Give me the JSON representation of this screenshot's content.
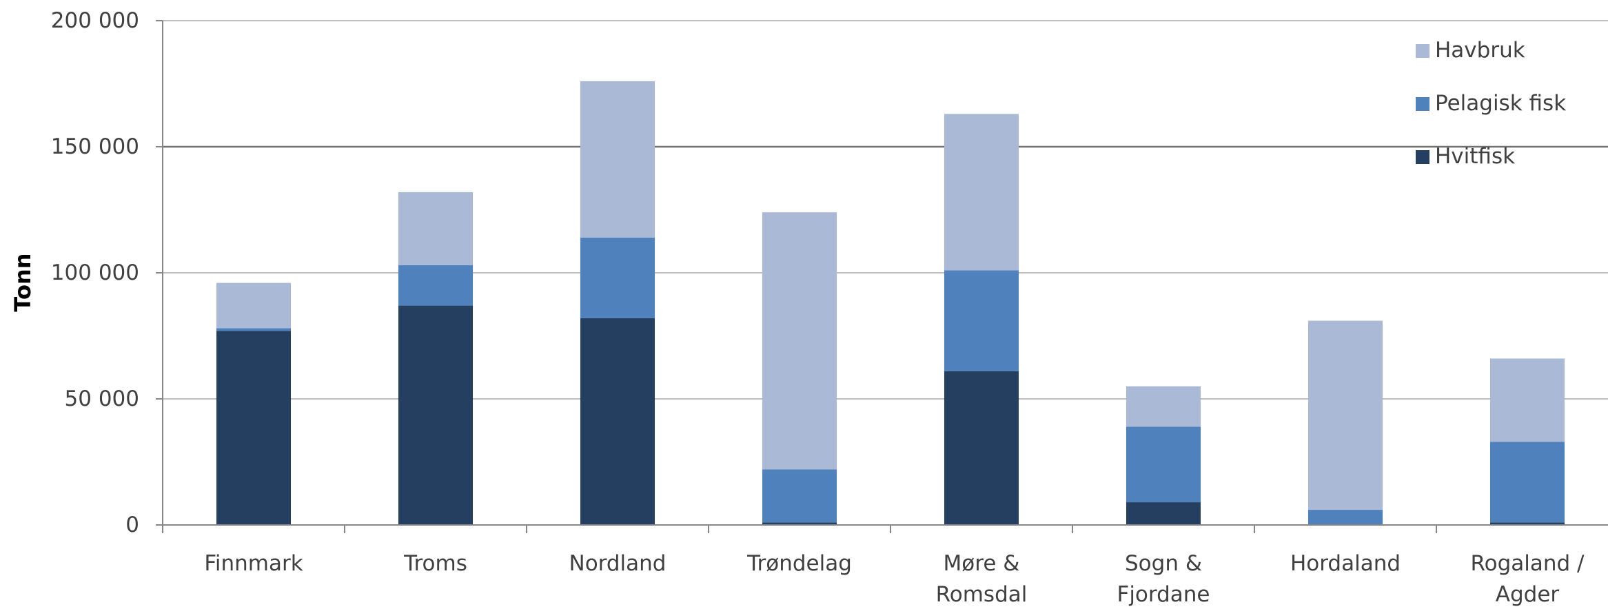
{
  "chart_data": {
    "type": "bar",
    "stacked": true,
    "categories": [
      "Finnmark",
      "Troms",
      "Nordland",
      "Trøndelag",
      "Møre & Romsdal",
      "Sogn & Fjordane",
      "Hordaland",
      "Rogaland / Agder"
    ],
    "category_lines": [
      [
        "Finnmark"
      ],
      [
        "Troms"
      ],
      [
        "Nordland"
      ],
      [
        "Trøndelag"
      ],
      [
        "Møre &",
        "Romsdal"
      ],
      [
        "Sogn &",
        "Fjordane"
      ],
      [
        "Hordaland"
      ],
      [
        "Rogaland /",
        "Agder"
      ]
    ],
    "series": [
      {
        "name": "Hvitfisk",
        "color": "#243F60",
        "values": [
          77000,
          87000,
          82000,
          1000,
          61000,
          9000,
          0,
          1000
        ]
      },
      {
        "name": "Pelagisk fisk",
        "color": "#4F81BD",
        "values": [
          1000,
          16000,
          32000,
          21000,
          40000,
          30000,
          6000,
          32000
        ]
      },
      {
        "name": "Havbruk",
        "color": "#AAB9D5",
        "values": [
          18000,
          29000,
          62000,
          102000,
          62000,
          16000,
          75000,
          33000
        ]
      }
    ],
    "legend_order": [
      "Havbruk",
      "Pelagisk fisk",
      "Hvitfisk"
    ],
    "title": "",
    "xlabel": "",
    "ylabel": "Tonn",
    "ylim": [
      0,
      200000
    ],
    "yticks": [
      0,
      50000,
      100000,
      150000,
      200000
    ],
    "ytick_labels": [
      "0",
      "50 000",
      "100 000",
      "150 000",
      "200 000"
    ],
    "grid": true,
    "legend_position": "top-right"
  }
}
